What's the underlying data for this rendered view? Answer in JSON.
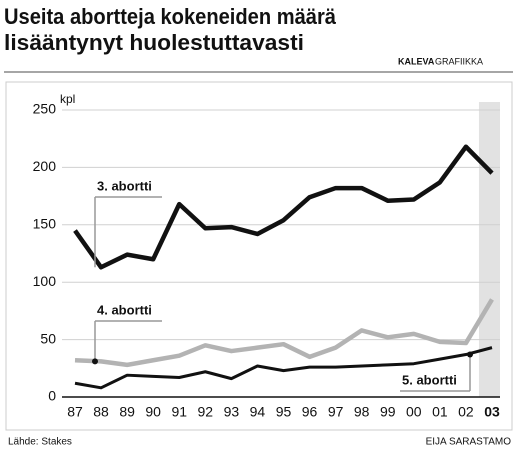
{
  "chart_data": {
    "type": "line",
    "title": [
      "Useita abortteja kokeneiden määrä",
      "lisääntynyt huolestuttavasti"
    ],
    "brand": {
      "bold": "KALEVA",
      "light": "GRAFIIKKA"
    },
    "y_label": "kpl",
    "source": "Lähde: Stakes",
    "credit": "EIJA SARASTAMO",
    "categories": [
      "87",
      "88",
      "89",
      "90",
      "91",
      "92",
      "93",
      "94",
      "95",
      "96",
      "97",
      "98",
      "99",
      "00",
      "01",
      "02",
      "03"
    ],
    "ylim": [
      0,
      250
    ],
    "yticks": [
      0,
      50,
      100,
      150,
      200,
      250
    ],
    "grid": true,
    "series": [
      {
        "name": "3. abortti",
        "color": "#111111",
        "values": [
          145,
          113,
          124,
          120,
          168,
          147,
          148,
          142,
          154,
          174,
          182,
          182,
          171,
          172,
          187,
          218,
          195
        ]
      },
      {
        "name": "4. abortti",
        "color": "#b3b3b3",
        "values": [
          32,
          31,
          28,
          32,
          36,
          45,
          40,
          43,
          46,
          35,
          43,
          58,
          52,
          55,
          48,
          47,
          85
        ]
      },
      {
        "name": "5. abortti",
        "color": "#111111",
        "values": [
          12,
          8,
          19,
          18,
          17,
          22,
          16,
          27,
          23,
          26,
          26,
          27,
          28,
          29,
          33,
          37,
          43
        ]
      }
    ]
  }
}
